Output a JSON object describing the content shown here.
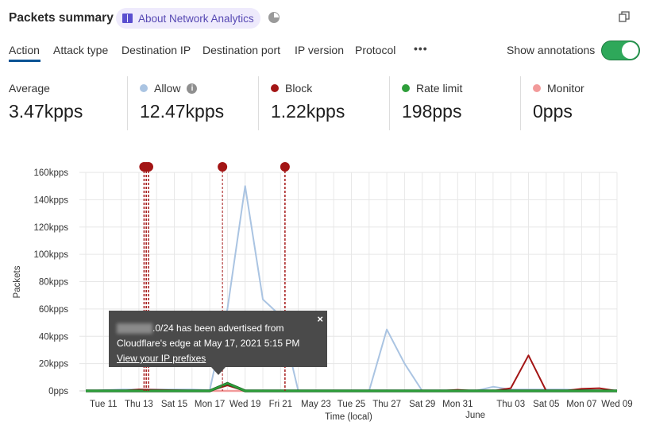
{
  "header": {
    "title": "Packets summary",
    "about_label": "About Network Analytics",
    "icons": [
      "book-icon",
      "pie-chart-icon",
      "copy-icon"
    ]
  },
  "tabs": [
    {
      "label": "Action",
      "active": true
    },
    {
      "label": "Attack type"
    },
    {
      "label": "Destination IP"
    },
    {
      "label": "Destination port"
    },
    {
      "label": "IP version"
    },
    {
      "label": "Protocol"
    }
  ],
  "more_label": "•••",
  "annotations_toggle": {
    "label": "Show annotations",
    "on": true,
    "color": "#2ea85a"
  },
  "stats": [
    {
      "label": "Average",
      "value": "3.47kpps"
    },
    {
      "label": "Allow",
      "value": "12.47kpps",
      "color": "#aac4e2",
      "info": "i"
    },
    {
      "label": "Block",
      "value": "1.22kpps",
      "color": "#a31515"
    },
    {
      "label": "Rate limit",
      "value": "198pps",
      "color": "#2e9e3a"
    },
    {
      "label": "Monitor",
      "value": "0pps",
      "color": "#f29a9a"
    }
  ],
  "tooltip": {
    "text_line1": ".0/24 has been advertised from",
    "text_line2": "Cloudflare's edge at May 17, 2021 5:15 PM",
    "link": "View your IP prefixes",
    "close": "×"
  },
  "chart_data": {
    "type": "line",
    "xlabel": "Time (local)",
    "ylabel": "Packets",
    "xlim": [
      "2021-05-10",
      "2021-06-09"
    ],
    "ylim": [
      0,
      160000
    ],
    "grid": true,
    "y_ticks": [
      {
        "value": 0,
        "label": "0pps"
      },
      {
        "value": 20000,
        "label": "20kpps"
      },
      {
        "value": 40000,
        "label": "40kpps"
      },
      {
        "value": 60000,
        "label": "60kpps"
      },
      {
        "value": 80000,
        "label": "80kpps"
      },
      {
        "value": 100000,
        "label": "100kpps"
      },
      {
        "value": 120000,
        "label": "120kpps"
      },
      {
        "value": 140000,
        "label": "140kpps"
      },
      {
        "value": 160000,
        "label": "160kpps"
      }
    ],
    "x_ticks": [
      {
        "date": "2021-05-11",
        "label": "Tue 11"
      },
      {
        "date": "2021-05-13",
        "label": "Thu 13"
      },
      {
        "date": "2021-05-15",
        "label": "Sat 15"
      },
      {
        "date": "2021-05-17",
        "label": "Mon 17"
      },
      {
        "date": "2021-05-19",
        "label": "Wed 19"
      },
      {
        "date": "2021-05-21",
        "label": "Fri 21"
      },
      {
        "date": "2021-05-23",
        "label": "May 23"
      },
      {
        "date": "2021-05-25",
        "label": "Tue 25"
      },
      {
        "date": "2021-05-27",
        "label": "Thu 27"
      },
      {
        "date": "2021-05-29",
        "label": "Sat 29"
      },
      {
        "date": "2021-05-31",
        "label": "Mon 31"
      },
      {
        "date": "2021-06-01",
        "label": "June"
      },
      {
        "date": "2021-06-03",
        "label": "Thu 03"
      },
      {
        "date": "2021-06-05",
        "label": "Sat 05"
      },
      {
        "date": "2021-06-07",
        "label": "Mon 07"
      },
      {
        "date": "2021-06-09",
        "label": "Wed 09"
      }
    ],
    "series": [
      {
        "name": "Allow",
        "color": "#aac4e2",
        "points": [
          [
            "2021-05-10",
            0
          ],
          [
            "2021-05-12",
            1000
          ],
          [
            "2021-05-14",
            1000
          ],
          [
            "2021-05-16",
            1000
          ],
          [
            "2021-05-17",
            500
          ],
          [
            "2021-05-18",
            60000
          ],
          [
            "2021-05-19",
            150000
          ],
          [
            "2021-05-20",
            67000
          ],
          [
            "2021-05-21",
            55000
          ],
          [
            "2021-05-22",
            0
          ],
          [
            "2021-05-26",
            0
          ],
          [
            "2021-05-27",
            45000
          ],
          [
            "2021-05-28",
            20000
          ],
          [
            "2021-05-29",
            0
          ],
          [
            "2021-06-01",
            0
          ],
          [
            "2021-06-02",
            3000
          ],
          [
            "2021-06-03",
            1000
          ],
          [
            "2021-06-06",
            1000
          ],
          [
            "2021-06-09",
            0
          ]
        ]
      },
      {
        "name": "Block",
        "color": "#a31515",
        "points": [
          [
            "2021-05-10",
            0
          ],
          [
            "2021-05-12",
            0
          ],
          [
            "2021-05-13",
            1000
          ],
          [
            "2021-05-17",
            0
          ],
          [
            "2021-05-18",
            4000
          ],
          [
            "2021-05-19",
            0
          ],
          [
            "2021-05-30",
            0
          ],
          [
            "2021-05-31",
            800
          ],
          [
            "2021-06-01",
            0
          ],
          [
            "2021-06-02",
            0
          ],
          [
            "2021-06-03",
            2000
          ],
          [
            "2021-06-04",
            26000
          ],
          [
            "2021-06-05",
            0
          ],
          [
            "2021-06-06",
            0
          ],
          [
            "2021-06-07",
            1500
          ],
          [
            "2021-06-08",
            2000
          ],
          [
            "2021-06-09",
            0
          ]
        ]
      },
      {
        "name": "Rate limit",
        "color": "#2e9e3a",
        "points": [
          [
            "2021-05-10",
            0
          ],
          [
            "2021-05-17",
            0
          ],
          [
            "2021-05-18",
            5500
          ],
          [
            "2021-05-19",
            0
          ],
          [
            "2021-06-09",
            0
          ]
        ]
      },
      {
        "name": "Monitor",
        "color": "#f29a9a",
        "points": [
          [
            "2021-05-10",
            0
          ],
          [
            "2021-06-09",
            0
          ]
        ]
      }
    ],
    "annotations": [
      {
        "time": "2021-05-13T07:00"
      },
      {
        "time": "2021-05-13T10:00"
      },
      {
        "time": "2021-05-13T13:00"
      },
      {
        "time": "2021-05-17T17:15",
        "selected": true
      },
      {
        "time": "2021-05-21T06:00"
      }
    ],
    "annotation_color": "#a31515"
  }
}
